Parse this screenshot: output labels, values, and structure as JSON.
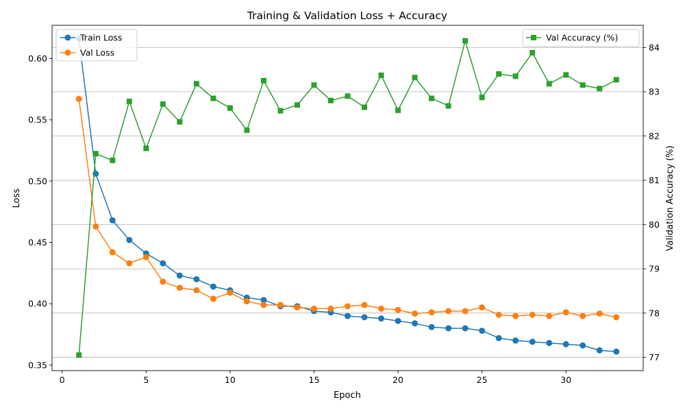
{
  "chart_data": {
    "type": "line",
    "title": "Training & Validation Loss + Accuracy",
    "xlabel": "Epoch",
    "ylabel_left": "Loss",
    "ylabel_right": "Validation Accuracy (%)",
    "xlim": [
      -0.6,
      34.6
    ],
    "ylim_left": [
      0.3455,
      0.627
    ],
    "ylim_right": [
      76.7,
      84.5
    ],
    "xticks": [
      0,
      5,
      10,
      15,
      20,
      25,
      30
    ],
    "yticks_left": [
      0.35,
      0.4,
      0.45,
      0.5,
      0.55,
      0.6
    ],
    "yticks_left_labels": [
      "0.35",
      "0.40",
      "0.45",
      "0.50",
      "0.55",
      "0.60"
    ],
    "yticks_right": [
      77,
      78,
      79,
      80,
      81,
      82,
      83,
      84
    ],
    "grid": "right-axis horizontal",
    "legend_left_position": "upper-left",
    "legend_right_position": "upper-right",
    "x": [
      1,
      2,
      3,
      4,
      5,
      6,
      7,
      8,
      9,
      10,
      11,
      12,
      13,
      14,
      15,
      16,
      17,
      18,
      19,
      20,
      21,
      22,
      23,
      24,
      25,
      26,
      27,
      28,
      29,
      30,
      31,
      32,
      33
    ],
    "series": [
      {
        "name": "Train Loss",
        "axis": "left",
        "color": "#1f77b4",
        "marker": "circle",
        "values": [
          0.616,
          0.506,
          0.468,
          0.452,
          0.441,
          0.433,
          0.423,
          0.42,
          0.414,
          0.411,
          0.405,
          0.403,
          0.398,
          0.398,
          0.394,
          0.393,
          0.39,
          0.389,
          0.388,
          0.386,
          0.384,
          0.381,
          0.38,
          0.38,
          0.378,
          0.372,
          0.37,
          0.369,
          0.368,
          0.367,
          0.366,
          0.362,
          0.361
        ]
      },
      {
        "name": "Val Loss",
        "axis": "left",
        "color": "#ff7f0e",
        "marker": "circle",
        "values": [
          0.567,
          0.463,
          0.442,
          0.433,
          0.438,
          0.418,
          0.413,
          0.411,
          0.404,
          0.409,
          0.402,
          0.399,
          0.399,
          0.397,
          0.396,
          0.396,
          0.398,
          0.399,
          0.396,
          0.395,
          0.392,
          0.393,
          0.394,
          0.394,
          0.397,
          0.391,
          0.39,
          0.391,
          0.39,
          0.393,
          0.39,
          0.392,
          0.389
        ]
      },
      {
        "name": "Val Accuracy (%)",
        "axis": "right",
        "color": "#2ca02c",
        "marker": "square",
        "values": [
          77.05,
          81.6,
          81.45,
          82.78,
          81.72,
          82.72,
          82.32,
          83.18,
          82.85,
          82.63,
          82.13,
          83.25,
          82.57,
          82.7,
          83.15,
          82.8,
          82.9,
          82.65,
          83.37,
          82.58,
          83.32,
          82.85,
          82.68,
          84.15,
          82.87,
          83.4,
          83.35,
          83.88,
          83.18,
          83.38,
          83.15,
          83.07,
          83.27
        ]
      }
    ]
  }
}
